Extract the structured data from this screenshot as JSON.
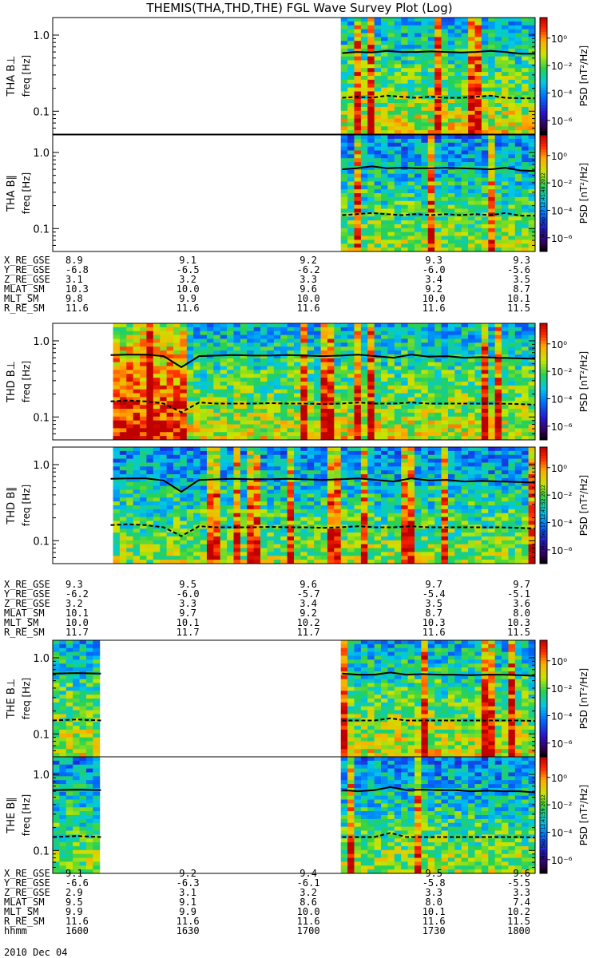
{
  "title": "THEMIS(THA,THD,THE) FGL Wave Survey Plot (Log)",
  "colorbar": {
    "label": "PSD [nT²/Hz]",
    "ticks": [
      "10⁰",
      "10⁻²",
      "10⁻⁴",
      "10⁻⁶"
    ],
    "log_range": [
      -7,
      1.5
    ]
  },
  "stamps": [
    "Mon Sep 17 12:41:48 2012",
    "Mon Sep 17 12:41:52 2012",
    "Mon Sep 17 12:41:59 2012"
  ],
  "chart_data": [
    {
      "type": "heatmap",
      "probe": "THA",
      "component": "perp",
      "ylabel": "THA B⊥",
      "yaxis_label": "freq [Hz]",
      "yticks": [
        "1.0",
        "0.1"
      ],
      "yscale": "log",
      "ylim": [
        0.05,
        1.7
      ],
      "data_extent": [
        0.6,
        1.0
      ],
      "gaps": [],
      "solid_line": [
        0.58,
        0.6,
        0.59,
        0.62,
        0.6,
        0.6,
        0.61,
        0.6,
        0.59,
        0.6,
        0.62,
        0.6,
        0.57,
        0.57
      ],
      "dashed_line": [
        0.15,
        0.155,
        0.15,
        0.16,
        0.155,
        0.15,
        0.155,
        0.15,
        0.15,
        0.155,
        0.16,
        0.15,
        0.148,
        0.148
      ]
    },
    {
      "type": "heatmap",
      "probe": "THA",
      "component": "par",
      "ylabel": "THA B∥",
      "yaxis_label": "freq [Hz]",
      "yticks": [
        "1.0",
        "0.1"
      ],
      "yscale": "log",
      "ylim": [
        0.05,
        1.7
      ],
      "data_extent": [
        0.6,
        1.0
      ],
      "gaps": [],
      "solid_line": [
        0.6,
        0.62,
        0.66,
        0.62,
        0.63,
        0.62,
        0.62,
        0.63,
        0.62,
        0.61,
        0.6,
        0.63,
        0.58,
        0.57
      ],
      "dashed_line": [
        0.15,
        0.155,
        0.16,
        0.155,
        0.15,
        0.155,
        0.15,
        0.155,
        0.15,
        0.155,
        0.15,
        0.16,
        0.148,
        0.148
      ]
    },
    {
      "type": "heatmap",
      "probe": "THD",
      "component": "perp",
      "ylabel": "THD B⊥",
      "yaxis_label": "freq [Hz]",
      "yticks": [
        "1.0",
        "0.1"
      ],
      "yscale": "log",
      "ylim": [
        0.05,
        1.7
      ],
      "data_extent": [
        0.12,
        1.0
      ],
      "gaps": [],
      "solid_line": [
        0.65,
        0.66,
        0.66,
        0.63,
        0.45,
        0.63,
        0.64,
        0.65,
        0.64,
        0.64,
        0.65,
        0.64,
        0.63,
        0.64,
        0.66,
        0.63,
        0.6,
        0.66,
        0.62,
        0.63,
        0.6,
        0.61,
        0.6,
        0.59,
        0.58
      ],
      "dashed_line": [
        0.16,
        0.165,
        0.16,
        0.15,
        0.115,
        0.155,
        0.15,
        0.15,
        0.15,
        0.152,
        0.15,
        0.15,
        0.148,
        0.15,
        0.155,
        0.15,
        0.15,
        0.155,
        0.15,
        0.15,
        0.15,
        0.15,
        0.15,
        0.148,
        0.145
      ]
    },
    {
      "type": "heatmap",
      "probe": "THD",
      "component": "par",
      "ylabel": "THD B∥",
      "yaxis_label": "freq [Hz]",
      "yticks": [
        "1.0",
        "0.1"
      ],
      "yscale": "log",
      "ylim": [
        0.05,
        1.7
      ],
      "data_extent": [
        0.12,
        1.0
      ],
      "gaps": [],
      "solid_line": [
        0.65,
        0.66,
        0.66,
        0.62,
        0.44,
        0.63,
        0.64,
        0.65,
        0.64,
        0.64,
        0.65,
        0.64,
        0.63,
        0.64,
        0.66,
        0.63,
        0.6,
        0.66,
        0.62,
        0.63,
        0.6,
        0.61,
        0.6,
        0.59,
        0.58
      ],
      "dashed_line": [
        0.16,
        0.165,
        0.16,
        0.15,
        0.115,
        0.155,
        0.15,
        0.15,
        0.15,
        0.152,
        0.15,
        0.15,
        0.148,
        0.15,
        0.155,
        0.15,
        0.15,
        0.155,
        0.15,
        0.15,
        0.15,
        0.15,
        0.15,
        0.148,
        0.145
      ]
    },
    {
      "type": "heatmap",
      "probe": "THE",
      "component": "perp",
      "ylabel": "THE B⊥",
      "yaxis_label": "freq [Hz]",
      "yticks": [
        "1.0",
        "0.1"
      ],
      "yscale": "log",
      "ylim": [
        0.05,
        1.7
      ],
      "data_extent": [
        0.0,
        1.0
      ],
      "gaps": [
        [
          0.1,
          0.6
        ]
      ],
      "solid_line": [
        0.62,
        0.63,
        0.62,
        0.62,
        0.6,
        0.6,
        0.64,
        0.6,
        0.61,
        0.6,
        0.6,
        0.59,
        0.6,
        0.6,
        0.59,
        0.58
      ],
      "dashed_line": [
        0.15,
        0.155,
        0.15,
        0.15,
        0.15,
        0.15,
        0.16,
        0.15,
        0.15,
        0.15,
        0.15,
        0.15,
        0.15,
        0.15,
        0.15,
        0.148
      ]
    },
    {
      "type": "heatmap",
      "probe": "THE",
      "component": "par",
      "ylabel": "THE B∥",
      "yaxis_label": "freq [Hz]",
      "yticks": [
        "1.0",
        "0.1"
      ],
      "yscale": "log",
      "ylim": [
        0.05,
        1.7
      ],
      "data_extent": [
        0.0,
        1.0
      ],
      "gaps": [
        [
          0.1,
          0.6
        ]
      ],
      "solid_line": [
        0.62,
        0.63,
        0.62,
        0.62,
        0.6,
        0.62,
        0.68,
        0.62,
        0.63,
        0.62,
        0.62,
        0.6,
        0.61,
        0.6,
        0.6,
        0.58
      ],
      "dashed_line": [
        0.15,
        0.155,
        0.15,
        0.15,
        0.15,
        0.15,
        0.17,
        0.15,
        0.15,
        0.15,
        0.15,
        0.15,
        0.15,
        0.15,
        0.15,
        0.148
      ]
    }
  ],
  "ephemeris": [
    {
      "rows": [
        {
          "name": "X_RE_GSE",
          "values": [
            "8.9",
            "9.1",
            "9.2",
            "9.3",
            "9.3"
          ]
        },
        {
          "name": "Y_RE_GSE",
          "values": [
            "-6.8",
            "-6.5",
            "-6.2",
            "-6.0",
            "-5.6"
          ]
        },
        {
          "name": "Z_RE_GSE",
          "values": [
            "3.1",
            "3.2",
            "3.3",
            "3.4",
            "3.5"
          ]
        },
        {
          "name": "MLAT_SM",
          "values": [
            "10.3",
            "10.0",
            "9.6",
            "9.2",
            "8.7"
          ]
        },
        {
          "name": "MLT_SM",
          "values": [
            "9.8",
            "9.9",
            "10.0",
            "10.0",
            "10.1"
          ]
        },
        {
          "name": "R_RE_SM",
          "values": [
            "11.6",
            "11.6",
            "11.6",
            "11.6",
            "11.5"
          ]
        }
      ]
    },
    {
      "rows": [
        {
          "name": "X_RE_GSE",
          "values": [
            "9.3",
            "9.5",
            "9.6",
            "9.7",
            "9.7"
          ]
        },
        {
          "name": "Y_RE_GSE",
          "values": [
            "-6.2",
            "-6.0",
            "-5.7",
            "-5.4",
            "-5.1"
          ]
        },
        {
          "name": "Z_RE_GSE",
          "values": [
            "3.2",
            "3.3",
            "3.4",
            "3.5",
            "3.6"
          ]
        },
        {
          "name": "MLAT_SM",
          "values": [
            "10.1",
            "9.7",
            "9.2",
            "8.7",
            "8.0"
          ]
        },
        {
          "name": "MLT_SM",
          "values": [
            "10.0",
            "10.1",
            "10.2",
            "10.3",
            "10.3"
          ]
        },
        {
          "name": "R_RE_SM",
          "values": [
            "11.7",
            "11.7",
            "11.7",
            "11.6",
            "11.5"
          ]
        }
      ]
    },
    {
      "rows": [
        {
          "name": "X_RE_GSE",
          "values": [
            "9.1",
            "9.2",
            "9.4",
            "9.5",
            "9.6"
          ]
        },
        {
          "name": "Y_RE_GSE",
          "values": [
            "-6.6",
            "-6.3",
            "-6.1",
            "-5.8",
            "-5.5"
          ]
        },
        {
          "name": "Z_RE_GSE",
          "values": [
            "2.9",
            "3.1",
            "3.2",
            "3.3",
            "3.3"
          ]
        },
        {
          "name": "MLAT_SM",
          "values": [
            "9.5",
            "9.1",
            "8.6",
            "8.0",
            "7.4"
          ]
        },
        {
          "name": "MLT_SM",
          "values": [
            "9.9",
            "9.9",
            "10.0",
            "10.1",
            "10.2"
          ]
        },
        {
          "name": "R_RE_SM",
          "values": [
            "11.6",
            "11.6",
            "11.6",
            "11.6",
            "11.5"
          ]
        },
        {
          "name": "hhmm",
          "values": [
            "1600",
            "1630",
            "1700",
            "1730",
            "1800"
          ]
        }
      ]
    }
  ],
  "date_label": "2010 Dec 04"
}
